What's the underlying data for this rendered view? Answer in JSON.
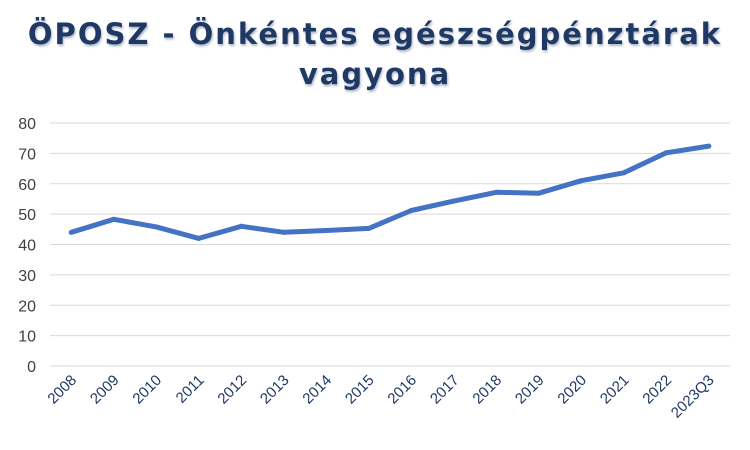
{
  "chart_data": {
    "type": "line",
    "title_lines": [
      "ÖPOSZ - Önkéntes egészségpénztárak",
      "vagyona"
    ],
    "xlabel": "",
    "ylabel": "",
    "categories": [
      "2008",
      "2009",
      "2010",
      "2011",
      "2012",
      "2013",
      "2014",
      "2015",
      "2016",
      "2017",
      "2018",
      "2019",
      "2020",
      "2021",
      "2022",
      "2023Q3"
    ],
    "series": [
      {
        "values": [
          44,
          48.3,
          45.8,
          42,
          46,
          44,
          44.6,
          45.3,
          51.2,
          54.3,
          57.2,
          56.9,
          61,
          63.6,
          70.2,
          72.4
        ]
      }
    ],
    "ylim": [
      0,
      80
    ],
    "yticks": [
      0,
      10,
      20,
      30,
      40,
      50,
      60,
      70,
      80
    ],
    "grid": true,
    "legend": "none",
    "line_color": "#4472c4",
    "grid_color": "#d9d9d9"
  }
}
